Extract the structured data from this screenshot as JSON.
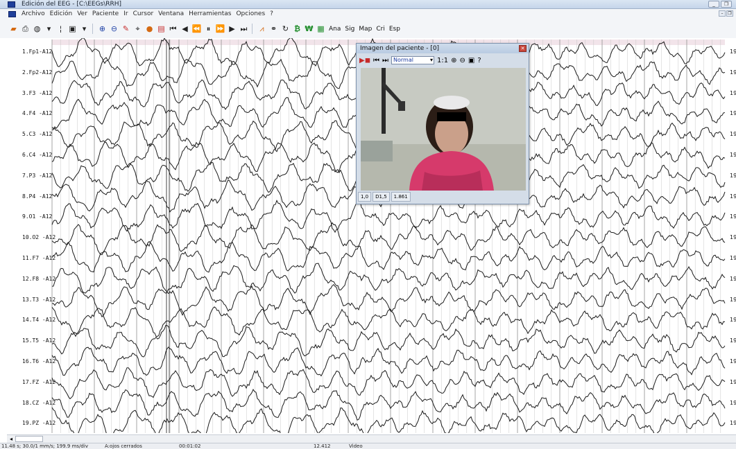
{
  "window": {
    "title": "Edición del EEG - [C:\\EEGs\\RRH]"
  },
  "menu": [
    "Archivo",
    "Edición",
    "Ver",
    "Paciente",
    "Ir",
    "Cursor",
    "Ventana",
    "Herramientas",
    "Opciones",
    "?"
  ],
  "toolbar": {
    "text_buttons": [
      "Ana",
      "Sig",
      "Map",
      "Cri",
      "Esp"
    ]
  },
  "channels": [
    "1.Fp1-A12",
    "2.Fp2-A12",
    "3.F3 -A12",
    "4.F4 -A12",
    "5.C3 -A12",
    "6.C4 -A12",
    "7.P3 -A12",
    "8.P4 -A12",
    "9.O1 -A12",
    "10.O2 -A12",
    "11.F7 -A12",
    "12.F8 -A12",
    "13.T3 -A12",
    "14.T4 -A12",
    "15.T5 -A12",
    "16.T6 -A12",
    "17.FZ -A12",
    "18.CZ -A12",
    "19.PZ -A12"
  ],
  "right_label": "19",
  "video_window": {
    "title": "Imagen del paciente - [0]",
    "mode": "Normal",
    "zoom": "1:1",
    "help": "?",
    "status": [
      "1,0",
      "D1,5",
      "1.861"
    ]
  },
  "statusbar": {
    "fields": [
      "11.48 s; 30.0/1 mm/s; 199.9 ms/div",
      "A:ojos cerrados",
      "00:01:02",
      "12.412",
      "Video"
    ]
  },
  "colors": {
    "title_bg": "#c5d5ea",
    "trace": "#1a1a1a",
    "grid": "#c8c8c8"
  }
}
